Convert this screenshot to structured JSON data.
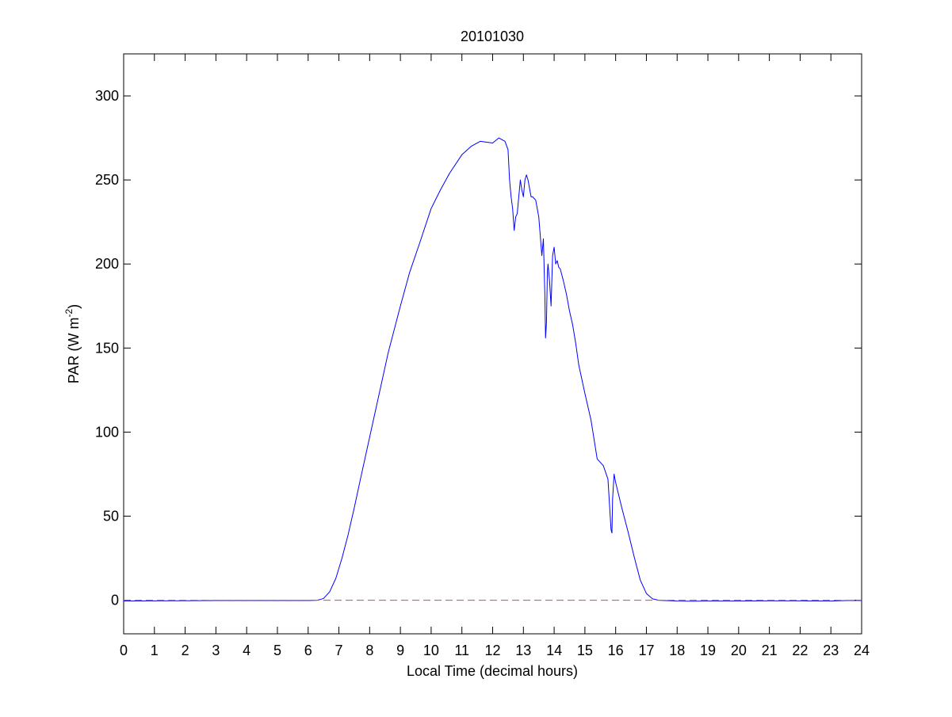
{
  "chart_data": {
    "type": "line",
    "title": "20101030",
    "xlabel": "Local Time (decimal hours)",
    "ylabel": {
      "prefix": "PAR (W m",
      "superscript": "-2",
      "suffix": ")"
    },
    "xlim": [
      0,
      24
    ],
    "ylim": [
      -20,
      325
    ],
    "xticks": [
      0,
      1,
      2,
      3,
      4,
      5,
      6,
      7,
      8,
      9,
      10,
      11,
      12,
      13,
      14,
      15,
      16,
      17,
      18,
      19,
      20,
      21,
      22,
      23,
      24
    ],
    "yticks": [
      0,
      50,
      100,
      150,
      200,
      250,
      300
    ],
    "grid": false,
    "legend": "none",
    "series": [
      {
        "color": "#0000ff",
        "style": "solid",
        "x": [
          0,
          1.2,
          2,
          3,
          4,
          5,
          6,
          6.3,
          6.5,
          6.7,
          6.9,
          7.1,
          7.3,
          7.5,
          7.7,
          8.0,
          8.3,
          8.6,
          9.0,
          9.3,
          9.6,
          10.0,
          10.3,
          10.6,
          11.0,
          11.3,
          11.6,
          12.0,
          12.2,
          12.4,
          12.5,
          12.55,
          12.6,
          12.65,
          12.7,
          12.75,
          12.8,
          12.85,
          12.9,
          12.95,
          13.0,
          13.05,
          13.1,
          13.15,
          13.2,
          13.25,
          13.3,
          13.4,
          13.5,
          13.6,
          13.65,
          13.7,
          13.72,
          13.75,
          13.78,
          13.8,
          13.85,
          13.9,
          13.95,
          14.0,
          14.05,
          14.1,
          14.15,
          14.2,
          14.3,
          14.4,
          14.5,
          14.6,
          14.7,
          14.8,
          15.0,
          15.2,
          15.4,
          15.6,
          15.75,
          15.85,
          15.88,
          15.9,
          15.95,
          16.0,
          16.2,
          16.4,
          16.6,
          16.8,
          17.0,
          17.2,
          17.4,
          17.6,
          18.0,
          18.5,
          19,
          20,
          21,
          22,
          23,
          23.5,
          24
        ],
        "y": [
          -0.5,
          -0.4,
          -0.3,
          -0.2,
          -0.2,
          -0.2,
          -0.2,
          0,
          1,
          5,
          13,
          25,
          39,
          55,
          72,
          97,
          122,
          147,
          175,
          195,
          211,
          233,
          244,
          254,
          265,
          270,
          273,
          272,
          275,
          273,
          268,
          250,
          240,
          233,
          220,
          228,
          230,
          240,
          250,
          244,
          240,
          250,
          253,
          250,
          245,
          240,
          240,
          238,
          228,
          205,
          215,
          180,
          156,
          165,
          195,
          200,
          190,
          175,
          205,
          210,
          200,
          202,
          198,
          197,
          190,
          182,
          172,
          164,
          153,
          140,
          123,
          107,
          84,
          80,
          72,
          42,
          40,
          60,
          75,
          70,
          55,
          41,
          26,
          12,
          4,
          0.8,
          0,
          -0.2,
          -0.5,
          -0.6,
          -0.5,
          -0.5,
          -0.4,
          -0.4,
          -0.5,
          -0.2,
          -0.2
        ]
      },
      {
        "color": "#c0504d",
        "style": "dashed",
        "x": [
          0,
          24
        ],
        "y": [
          0,
          0
        ]
      }
    ]
  }
}
